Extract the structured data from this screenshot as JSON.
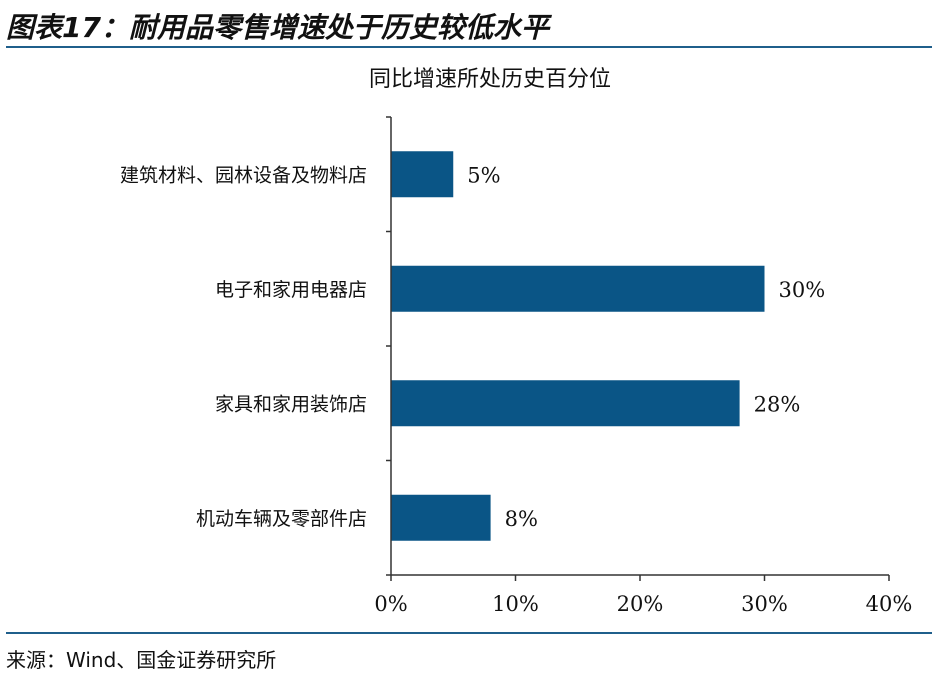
{
  "figure": {
    "title": "图表17：耐用品零售增速处于历史较低水平",
    "source": "来源：Wind、国金证券研究所"
  },
  "colors": {
    "bar": "#0a5586",
    "rule": "#1f5f8b"
  },
  "chart_data": {
    "type": "bar",
    "orientation": "horizontal",
    "title": "同比增速所处历史百分位",
    "xlabel": "",
    "ylabel": "",
    "categories": [
      "建筑材料、园林设备及物料店",
      "电子和家用电器店",
      "家具和家用装饰店",
      "机动车辆及零部件店"
    ],
    "values": [
      5,
      30,
      28,
      8
    ],
    "data_labels": [
      "5%",
      "30%",
      "28%",
      "8%"
    ],
    "xlim": [
      0,
      40
    ],
    "x_ticks": [
      0,
      10,
      20,
      30,
      40
    ],
    "x_tick_labels": [
      "0%",
      "10%",
      "20%",
      "30%",
      "40%"
    ],
    "grid": false,
    "legend": "none"
  }
}
